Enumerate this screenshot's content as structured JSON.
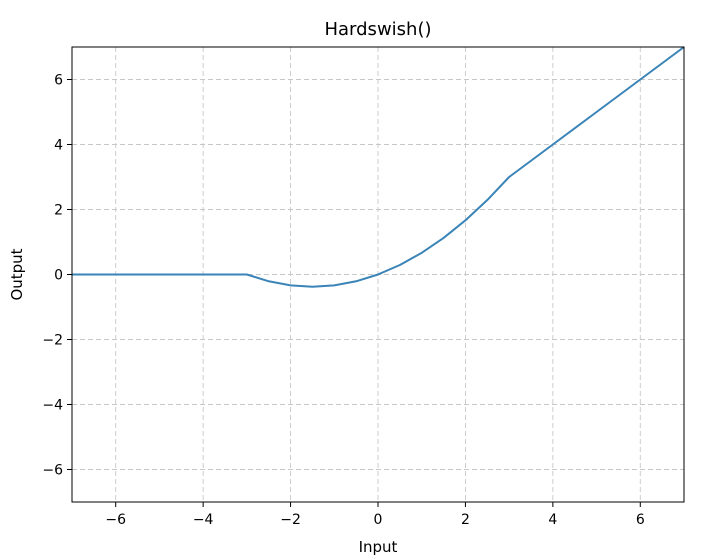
{
  "chart_data": {
    "type": "line",
    "title": "Hardswish()",
    "xlabel": "Input",
    "ylabel": "Output",
    "xlim": [
      -7,
      7
    ],
    "ylim": [
      -7,
      7
    ],
    "grid": true,
    "xticks": [
      -6,
      -4,
      -2,
      0,
      2,
      4,
      6
    ],
    "yticks": [
      -6,
      -4,
      -2,
      0,
      2,
      4,
      6
    ],
    "xtick_labels": [
      "−6",
      "−4",
      "−2",
      "0",
      "2",
      "4",
      "6"
    ],
    "ytick_labels": [
      "−6",
      "−4",
      "−2",
      "0",
      "2",
      "4",
      "6"
    ],
    "line_color": "#3a84b7",
    "series": [
      {
        "x": [
          -7,
          -6,
          -5,
          -4,
          -3,
          -2.5,
          -2,
          -1.5,
          -1,
          -0.5,
          0,
          0.5,
          1,
          1.5,
          2,
          2.5,
          3,
          4,
          5,
          6,
          7
        ],
        "y": [
          0,
          0,
          0,
          0,
          0,
          -0.2083,
          -0.3333,
          -0.375,
          -0.3333,
          -0.2083,
          0,
          0.2917,
          0.6667,
          1.125,
          1.6667,
          2.2917,
          3,
          4,
          5,
          6,
          7
        ]
      }
    ]
  }
}
